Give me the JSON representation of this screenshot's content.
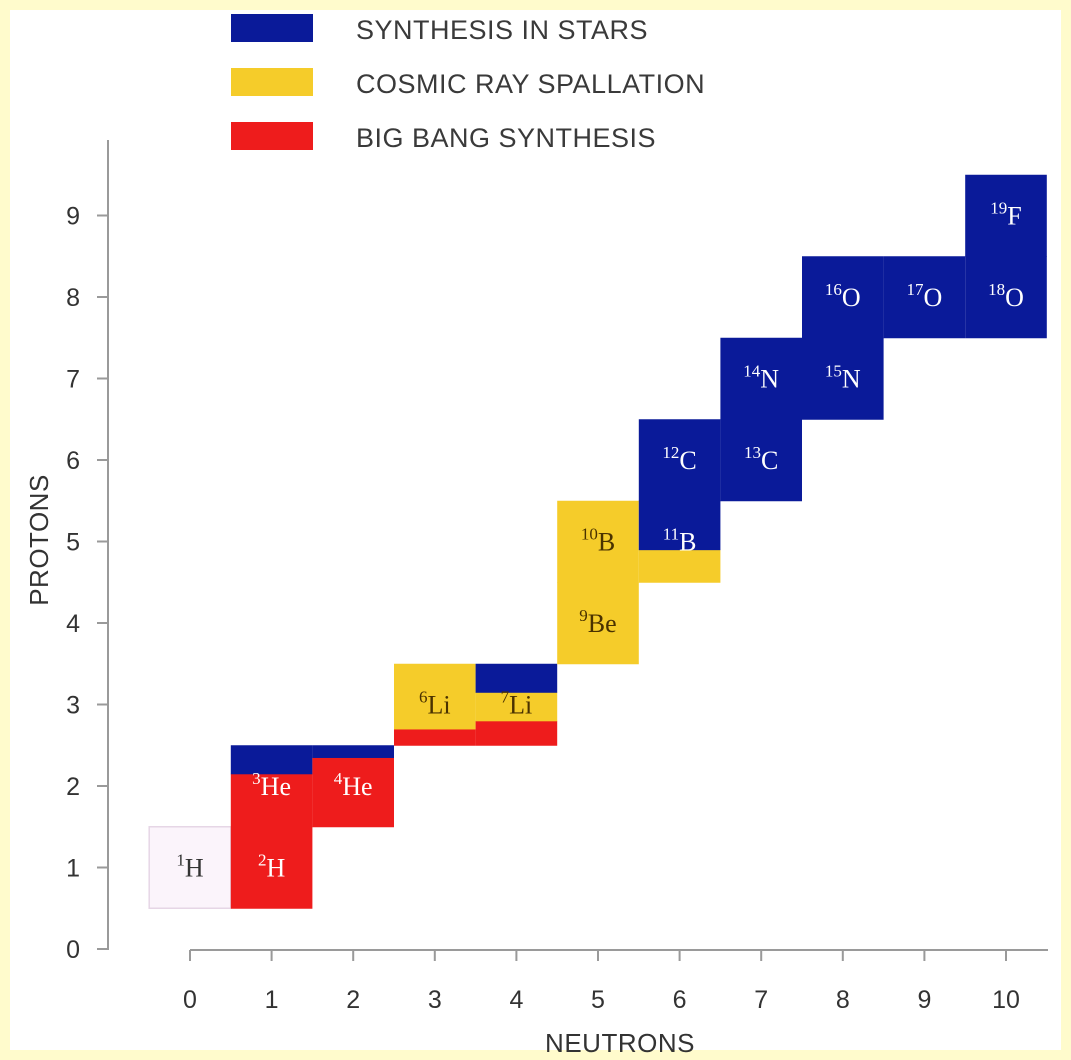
{
  "chart_data": {
    "type": "heatmap",
    "xlabel": "NEUTRONS",
    "ylabel": "PROTONS",
    "xlim": [
      0,
      10
    ],
    "ylim": [
      0,
      9
    ],
    "x_ticks": [
      "0",
      "1",
      "2",
      "3",
      "4",
      "5",
      "6",
      "7",
      "8",
      "9",
      "10"
    ],
    "y_ticks": [
      "0",
      "1",
      "2",
      "3",
      "4",
      "5",
      "6",
      "7",
      "8",
      "9"
    ],
    "grid": false,
    "legend_position": "top-center",
    "legend": [
      {
        "key": "stars",
        "label": "SYNTHESIS IN STARS",
        "color": "#0a1a99"
      },
      {
        "key": "cosmic",
        "label": "COSMIC RAY SPALLATION",
        "color": "#f5cc2a"
      },
      {
        "key": "bigbang",
        "label": "BIG BANG SYNTHESIS",
        "color": "#ee1c1c"
      }
    ],
    "cells": [
      {
        "n": 0,
        "p": 1,
        "mass": "1",
        "symbol": "H",
        "origin": [],
        "empty_color": "#fbf4fb"
      },
      {
        "n": 1,
        "p": 1,
        "mass": "2",
        "symbol": "H",
        "origin": [
          [
            "bigbang",
            1.0
          ]
        ]
      },
      {
        "n": 1,
        "p": 2,
        "mass": "3",
        "symbol": "He",
        "origin": [
          [
            "bigbang",
            0.65
          ],
          [
            "stars",
            0.35
          ]
        ]
      },
      {
        "n": 2,
        "p": 2,
        "mass": "4",
        "symbol": "He",
        "origin": [
          [
            "bigbang",
            0.85
          ],
          [
            "stars",
            0.15
          ]
        ]
      },
      {
        "n": 3,
        "p": 3,
        "mass": "6",
        "symbol": "Li",
        "origin": [
          [
            "bigbang",
            0.2
          ],
          [
            "cosmic",
            0.8
          ]
        ]
      },
      {
        "n": 4,
        "p": 3,
        "mass": "7",
        "symbol": "Li",
        "origin": [
          [
            "bigbang",
            0.3
          ],
          [
            "cosmic",
            0.35
          ],
          [
            "stars",
            0.35
          ]
        ]
      },
      {
        "n": 5,
        "p": 4,
        "mass": "9",
        "symbol": "Be",
        "origin": [
          [
            "cosmic",
            1.0
          ]
        ]
      },
      {
        "n": 5,
        "p": 5,
        "mass": "10",
        "symbol": "B",
        "origin": [
          [
            "cosmic",
            1.0
          ]
        ]
      },
      {
        "n": 6,
        "p": 5,
        "mass": "11",
        "symbol": "B",
        "origin": [
          [
            "cosmic",
            0.4
          ],
          [
            "stars",
            0.6
          ]
        ]
      },
      {
        "n": 6,
        "p": 6,
        "mass": "12",
        "symbol": "C",
        "origin": [
          [
            "stars",
            1.0
          ]
        ]
      },
      {
        "n": 7,
        "p": 6,
        "mass": "13",
        "symbol": "C",
        "origin": [
          [
            "stars",
            1.0
          ]
        ]
      },
      {
        "n": 7,
        "p": 7,
        "mass": "14",
        "symbol": "N",
        "origin": [
          [
            "stars",
            1.0
          ]
        ]
      },
      {
        "n": 8,
        "p": 7,
        "mass": "15",
        "symbol": "N",
        "origin": [
          [
            "stars",
            1.0
          ]
        ]
      },
      {
        "n": 8,
        "p": 8,
        "mass": "16",
        "symbol": "O",
        "origin": [
          [
            "stars",
            1.0
          ]
        ]
      },
      {
        "n": 9,
        "p": 8,
        "mass": "17",
        "symbol": "O",
        "origin": [
          [
            "stars",
            1.0
          ]
        ]
      },
      {
        "n": 10,
        "p": 8,
        "mass": "18",
        "symbol": "O",
        "origin": [
          [
            "stars",
            1.0
          ]
        ]
      },
      {
        "n": 10,
        "p": 9,
        "mass": "19",
        "symbol": "F",
        "origin": [
          [
            "stars",
            1.0
          ]
        ]
      }
    ]
  }
}
